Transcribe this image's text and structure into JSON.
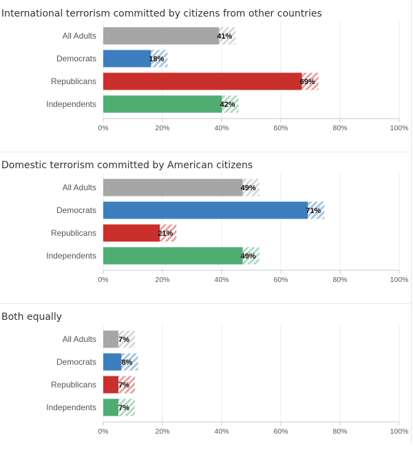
{
  "chart_data": [
    {
      "type": "bar",
      "orientation": "horizontal",
      "title": "International terrorism committed by citizens from other countries",
      "categories": [
        "All Adults",
        "Democrats",
        "Republicans",
        "Independents"
      ],
      "values": [
        41,
        18,
        69,
        42
      ],
      "value_labels": [
        "41%",
        "18%",
        "69%",
        "42%"
      ],
      "xlim": [
        0,
        100
      ],
      "x_ticks": [
        "0%",
        "20%",
        "40%",
        "60%",
        "80%",
        "100%"
      ],
      "grid": true
    },
    {
      "type": "bar",
      "orientation": "horizontal",
      "title": "Domestic terrorism committed by American citizens",
      "categories": [
        "All Adults",
        "Democrats",
        "Republicans",
        "Independents"
      ],
      "values": [
        49,
        71,
        21,
        49
      ],
      "value_labels": [
        "49%",
        "71%",
        "21%",
        "49%"
      ],
      "xlim": [
        0,
        100
      ],
      "x_ticks": [
        "0%",
        "20%",
        "40%",
        "60%",
        "80%",
        "100%"
      ],
      "grid": true
    },
    {
      "type": "bar",
      "orientation": "horizontal",
      "title": "Both equally",
      "categories": [
        "All Adults",
        "Democrats",
        "Republicans",
        "Independents"
      ],
      "values": [
        7,
        8,
        7,
        7
      ],
      "value_labels": [
        "7%",
        "8%",
        "7%",
        "7%"
      ],
      "xlim": [
        0,
        100
      ],
      "x_ticks": [
        "0%",
        "20%",
        "40%",
        "60%",
        "80%",
        "100%"
      ],
      "grid": true
    }
  ],
  "colors": {
    "All Adults": "#a6a6a6",
    "Democrats": "#3d7ebf",
    "Republicans": "#c9302c",
    "Independents": "#4fad72"
  },
  "error_band_style": "striped"
}
